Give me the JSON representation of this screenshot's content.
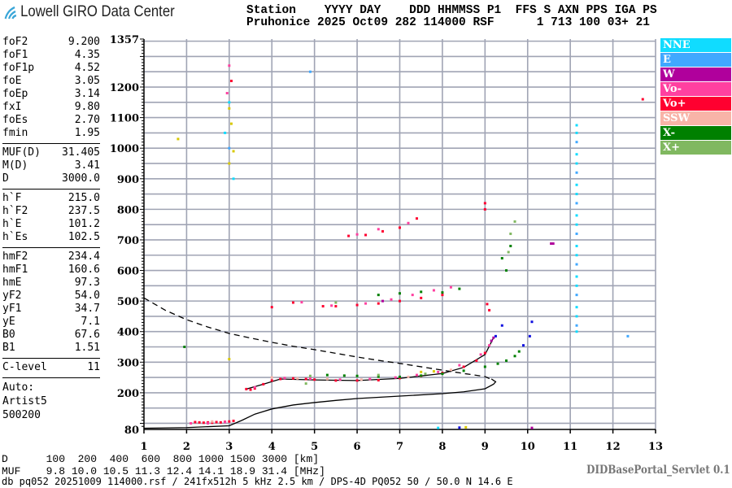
{
  "header": {
    "logo_text": "Lowell GIRO Data Center",
    "row1": "Station    YYYY DAY    DDD HHMMSS P1  FFS S AXN PPS IGA PS",
    "row2": "Pruhonice 2025 Oct09 282 114000 RSF      1 713 100 03+ 21"
  },
  "params": {
    "group1": [
      [
        "foF2",
        "9.200"
      ],
      [
        "foF1",
        "4.35"
      ],
      [
        "foF1p",
        "4.52"
      ],
      [
        "foE",
        "3.05"
      ],
      [
        "foEp",
        "3.14"
      ],
      [
        "fxI",
        "9.80"
      ],
      [
        "foEs",
        "2.70"
      ],
      [
        "fmin",
        "1.95"
      ]
    ],
    "group2": [
      [
        "MUF(D)",
        "31.405"
      ],
      [
        "M(D)",
        "3.41"
      ],
      [
        "D",
        "3000.0"
      ]
    ],
    "group3": [
      [
        "h`F",
        "215.0"
      ],
      [
        "h`F2",
        "237.5"
      ],
      [
        "h`E",
        "101.2"
      ],
      [
        "h`Es",
        "102.5"
      ]
    ],
    "group4": [
      [
        "hmF2",
        "234.4"
      ],
      [
        "hmF1",
        "160.6"
      ],
      [
        "hmE",
        "97.3"
      ],
      [
        "yF2",
        "54.0"
      ],
      [
        "yF1",
        "34.7"
      ],
      [
        "yE",
        "7.1"
      ],
      [
        "B0",
        "67.6"
      ],
      [
        "B1",
        "1.51"
      ]
    ],
    "group5": [
      [
        "C-level",
        "11"
      ]
    ],
    "notes": [
      "Auto:",
      "Artist5",
      "500200"
    ]
  },
  "legend": [
    {
      "label": "NNE",
      "color": "#10dcff"
    },
    {
      "label": "E",
      "color": "#40a8ff"
    },
    {
      "label": "W",
      "color": "#b0009c"
    },
    {
      "label": "Vo-",
      "color": "#ff40a0"
    },
    {
      "label": "Vo+",
      "color": "#ff0030"
    },
    {
      "label": "SSW",
      "color": "#f8b4a8"
    },
    {
      "label": "X-",
      "color": "#008000"
    },
    {
      "label": "X+",
      "color": "#80b860"
    }
  ],
  "bottom": {
    "d_row": "D      100  200  400  600  800 1000 1500 3000 [km]",
    "muf_row": "MUF    9.8 10.0 10.5 11.3 12.4 14.1 18.9 31.4 [MHz]",
    "servlet": "DIDBasePortal_Servlet 0.1",
    "footer": "db pq052 20251009 114000.rsf / 241fx512h 5 kHz 2.5 km / DPS-4D PQ052 50 / 50.0 N 14.6 E"
  },
  "chart_data": {
    "type": "scatter",
    "xlabel": "",
    "ylabel": "",
    "xlim": [
      1,
      13
    ],
    "ylim": [
      80,
      1357
    ],
    "x_ticks": [
      "1",
      "2",
      "3",
      "4",
      "5",
      "6",
      "7",
      "8",
      "9",
      "10",
      "11",
      "12",
      "13"
    ],
    "y_ticks": [
      "1357",
      "1200",
      "1100",
      "1000",
      "900",
      "800",
      "700",
      "600",
      "500",
      "400",
      "300",
      "200",
      "80"
    ],
    "grid": true,
    "legend_position": "right",
    "series": [
      {
        "name": "Vo+",
        "color": "#ff0030",
        "points": [
          [
            2.2,
            104
          ],
          [
            2.3,
            103
          ],
          [
            2.4,
            102
          ],
          [
            2.5,
            103
          ],
          [
            2.6,
            102
          ],
          [
            2.7,
            104
          ],
          [
            2.8,
            103
          ],
          [
            2.9,
            105
          ],
          [
            3.0,
            106
          ],
          [
            3.1,
            108
          ],
          [
            3.4,
            212
          ],
          [
            3.5,
            210
          ],
          [
            3.6,
            214
          ],
          [
            3.8,
            228
          ],
          [
            4.0,
            240
          ],
          [
            4.2,
            245
          ],
          [
            4.5,
            247
          ],
          [
            4.8,
            245
          ],
          [
            5.0,
            243
          ],
          [
            5.5,
            240
          ],
          [
            6.0,
            240
          ],
          [
            6.5,
            241
          ],
          [
            7.0,
            248
          ],
          [
            7.5,
            255
          ],
          [
            8.0,
            265
          ],
          [
            8.5,
            285
          ],
          [
            8.8,
            305
          ],
          [
            9.0,
            330
          ],
          [
            4.0,
            480
          ],
          [
            4.5,
            495
          ],
          [
            5.2,
            483
          ],
          [
            5.5,
            483
          ],
          [
            6.0,
            487
          ],
          [
            6.5,
            492
          ],
          [
            7.0,
            500
          ],
          [
            7.5,
            510
          ],
          [
            8.0,
            520
          ],
          [
            5.8,
            713
          ],
          [
            6.2,
            716
          ],
          [
            6.6,
            728
          ],
          [
            7.0,
            740
          ],
          [
            7.4,
            770
          ],
          [
            9.0,
            800
          ],
          [
            9.0,
            820
          ],
          [
            9.05,
            490
          ],
          [
            9.1,
            470
          ],
          [
            12.7,
            1160
          ],
          [
            3.05,
            1220
          ]
        ]
      },
      {
        "name": "Vo-",
        "color": "#ff40a0",
        "points": [
          [
            2.1,
            100
          ],
          [
            2.5,
            100
          ],
          [
            2.9,
            104
          ],
          [
            3.6,
            218
          ],
          [
            4.3,
            248
          ],
          [
            4.9,
            246
          ],
          [
            5.6,
            243
          ],
          [
            6.3,
            245
          ],
          [
            6.9,
            250
          ],
          [
            7.4,
            258
          ],
          [
            7.9,
            268
          ],
          [
            8.4,
            290
          ],
          [
            8.9,
            325
          ],
          [
            9.1,
            355
          ],
          [
            4.7,
            496
          ],
          [
            5.4,
            485
          ],
          [
            6.2,
            492
          ],
          [
            6.8,
            505
          ],
          [
            7.3,
            520
          ],
          [
            7.8,
            535
          ],
          [
            8.2,
            545
          ],
          [
            6.0,
            718
          ],
          [
            6.5,
            735
          ],
          [
            7.2,
            755
          ],
          [
            3.0,
            1270
          ],
          [
            2.95,
            1180
          ]
        ]
      },
      {
        "name": "X-",
        "color": "#008000",
        "points": [
          [
            5.3,
            258
          ],
          [
            5.7,
            256
          ],
          [
            6.0,
            255
          ],
          [
            6.5,
            253
          ],
          [
            7.0,
            252
          ],
          [
            7.5,
            256
          ],
          [
            8.0,
            262
          ],
          [
            8.5,
            272
          ],
          [
            9.0,
            285
          ],
          [
            9.3,
            295
          ],
          [
            9.5,
            305
          ],
          [
            9.7,
            320
          ],
          [
            9.8,
            335
          ],
          [
            6.5,
            520
          ],
          [
            7.0,
            525
          ],
          [
            7.5,
            530
          ],
          [
            8.0,
            528
          ],
          [
            8.4,
            540
          ],
          [
            9.4,
            640
          ],
          [
            9.6,
            680
          ],
          [
            9.5,
            600
          ],
          [
            1.95,
            350
          ]
        ]
      },
      {
        "name": "X+",
        "color": "#80b860",
        "points": [
          [
            4.9,
            255
          ],
          [
            6.5,
            258
          ],
          [
            7.6,
            262
          ],
          [
            9.6,
            720
          ],
          [
            9.7,
            760
          ],
          [
            9.55,
            660
          ],
          [
            5.5,
            495
          ],
          [
            4.8,
            230
          ]
        ]
      },
      {
        "name": "W",
        "color": "#b0009c",
        "points": [
          [
            9.2,
            380
          ],
          [
            9.15,
            370
          ],
          [
            10.55,
            688
          ],
          [
            10.6,
            688
          ],
          [
            6.6,
            500
          ],
          [
            10.1,
            85
          ]
        ]
      },
      {
        "name": "E",
        "color": "#40a8ff",
        "points": [
          [
            12.35,
            385
          ],
          [
            11.15,
            420
          ],
          [
            11.15,
            520
          ],
          [
            11.15,
            620
          ],
          [
            11.15,
            720
          ],
          [
            11.15,
            820
          ],
          [
            11.15,
            920
          ],
          [
            11.15,
            1020
          ],
          [
            4.9,
            1250
          ],
          [
            3.0,
            1000
          ]
        ]
      },
      {
        "name": "NNE",
        "color": "#10dcff",
        "points": [
          [
            11.15,
            400
          ],
          [
            11.15,
            450
          ],
          [
            11.15,
            480
          ],
          [
            11.15,
            550
          ],
          [
            11.15,
            580
          ],
          [
            11.15,
            650
          ],
          [
            11.15,
            680
          ],
          [
            11.15,
            750
          ],
          [
            11.15,
            780
          ],
          [
            11.15,
            850
          ],
          [
            11.15,
            880
          ],
          [
            11.15,
            950
          ],
          [
            11.15,
            980
          ],
          [
            11.15,
            1050
          ],
          [
            11.15,
            1075
          ],
          [
            3.0,
            1150
          ],
          [
            2.9,
            1050
          ],
          [
            3.1,
            900
          ],
          [
            7.9,
            85
          ]
        ]
      },
      {
        "name": "SSW",
        "color": "#f8b4a8",
        "points": [
          [
            4.0,
            250
          ],
          [
            4.6,
            247
          ],
          [
            5.3,
            245
          ],
          [
            6.1,
            243
          ],
          [
            7.2,
            252
          ],
          [
            8.2,
            275
          ],
          [
            2.6,
            106
          ]
        ]
      },
      {
        "name": "",
        "color": "#d8c800",
        "points": [
          [
            1.8,
            1030
          ],
          [
            3.0,
            1130
          ],
          [
            3.05,
            1080
          ],
          [
            3.0,
            950
          ],
          [
            3.1,
            990
          ],
          [
            8.55,
            87
          ],
          [
            3.0,
            310
          ],
          [
            7.5,
            268
          ],
          [
            7.8,
            270
          ]
        ]
      },
      {
        "name": "",
        "color": "#1010e0",
        "points": [
          [
            9.25,
            385
          ],
          [
            9.4,
            420
          ],
          [
            10.1,
            432
          ],
          [
            10.05,
            385
          ],
          [
            9.9,
            355
          ],
          [
            8.4,
            86
          ]
        ]
      }
    ],
    "curves": [
      {
        "style": "solid",
        "points": [
          [
            1.0,
            84
          ],
          [
            2.0,
            86
          ],
          [
            3.0,
            92
          ],
          [
            3.3,
            110
          ],
          [
            3.6,
            130
          ],
          [
            4.0,
            147
          ],
          [
            4.5,
            160
          ],
          [
            5.0,
            168
          ],
          [
            5.5,
            175
          ],
          [
            6.0,
            181
          ],
          [
            7.0,
            189
          ],
          [
            8.0,
            197
          ],
          [
            8.5,
            203
          ],
          [
            9.0,
            213
          ],
          [
            9.2,
            228
          ],
          [
            9.25,
            236
          ],
          [
            9.15,
            245
          ]
        ]
      },
      {
        "style": "dashed",
        "points": [
          [
            1.0,
            510
          ],
          [
            1.5,
            470
          ],
          [
            2.0,
            439
          ],
          [
            2.5,
            415
          ],
          [
            3.0,
            394
          ],
          [
            3.5,
            379
          ],
          [
            4.0,
            365
          ],
          [
            4.5,
            352
          ],
          [
            5.0,
            341
          ],
          [
            5.5,
            329
          ],
          [
            6.0,
            317
          ],
          [
            6.5,
            306
          ],
          [
            7.0,
            296
          ],
          [
            7.5,
            285
          ],
          [
            8.0,
            274
          ],
          [
            8.5,
            263
          ],
          [
            9.0,
            253
          ],
          [
            9.2,
            240
          ]
        ]
      },
      {
        "style": "solid",
        "points": [
          [
            3.4,
            212
          ],
          [
            3.8,
            228
          ],
          [
            4.2,
            245
          ],
          [
            5.0,
            242
          ],
          [
            6.0,
            240
          ],
          [
            7.0,
            247
          ],
          [
            8.0,
            263
          ],
          [
            8.5,
            283
          ],
          [
            9.0,
            325
          ],
          [
            9.2,
            380
          ]
        ]
      }
    ]
  }
}
